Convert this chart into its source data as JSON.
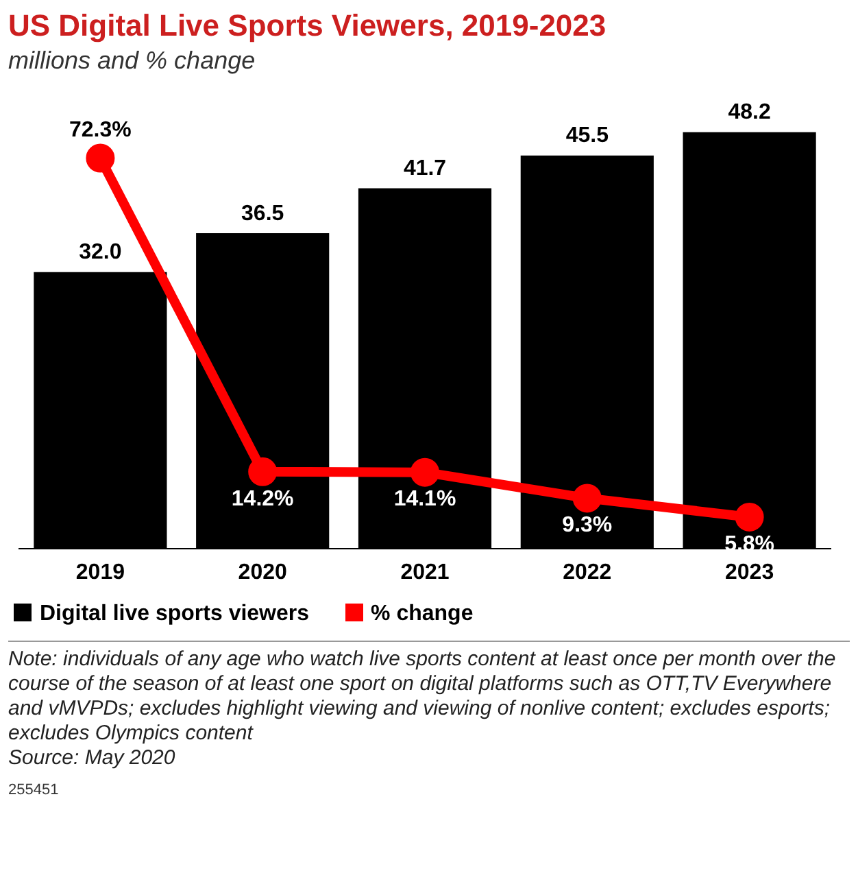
{
  "chart_data": {
    "type": "bar",
    "title": "US Digital Live Sports Viewers, 2019-2023",
    "subtitle": "millions and % change",
    "categories": [
      "2019",
      "2020",
      "2021",
      "2022",
      "2023"
    ],
    "series": [
      {
        "name": "Digital live sports viewers",
        "color": "#000000",
        "values": [
          32.0,
          36.5,
          41.7,
          45.5,
          48.2
        ],
        "value_labels": [
          "32.0",
          "36.5",
          "41.7",
          "45.5",
          "48.2"
        ]
      },
      {
        "name": "% change",
        "type": "line",
        "axis": "y2",
        "color": "#ff0000",
        "values": [
          72.3,
          14.2,
          14.1,
          9.3,
          5.8
        ],
        "value_labels": [
          "72.3%",
          "14.2%",
          "14.1%",
          "9.3%",
          "5.8%"
        ]
      }
    ],
    "tick_labels": "x",
    "grid": false,
    "legend": "bottom left",
    "marker": "circle",
    "line_style": "solid",
    "annotations": [
      "Note: individuals of any age who watch live sports content at least once per month over the course of the season of at least one sport on digital platforms such as OTT,TV Everywhere and vMVPDs; excludes highlight viewing and viewing of nonlive content; excludes esports; excludes Olympics content",
      "Source: May 2020",
      "255451"
    ]
  }
}
